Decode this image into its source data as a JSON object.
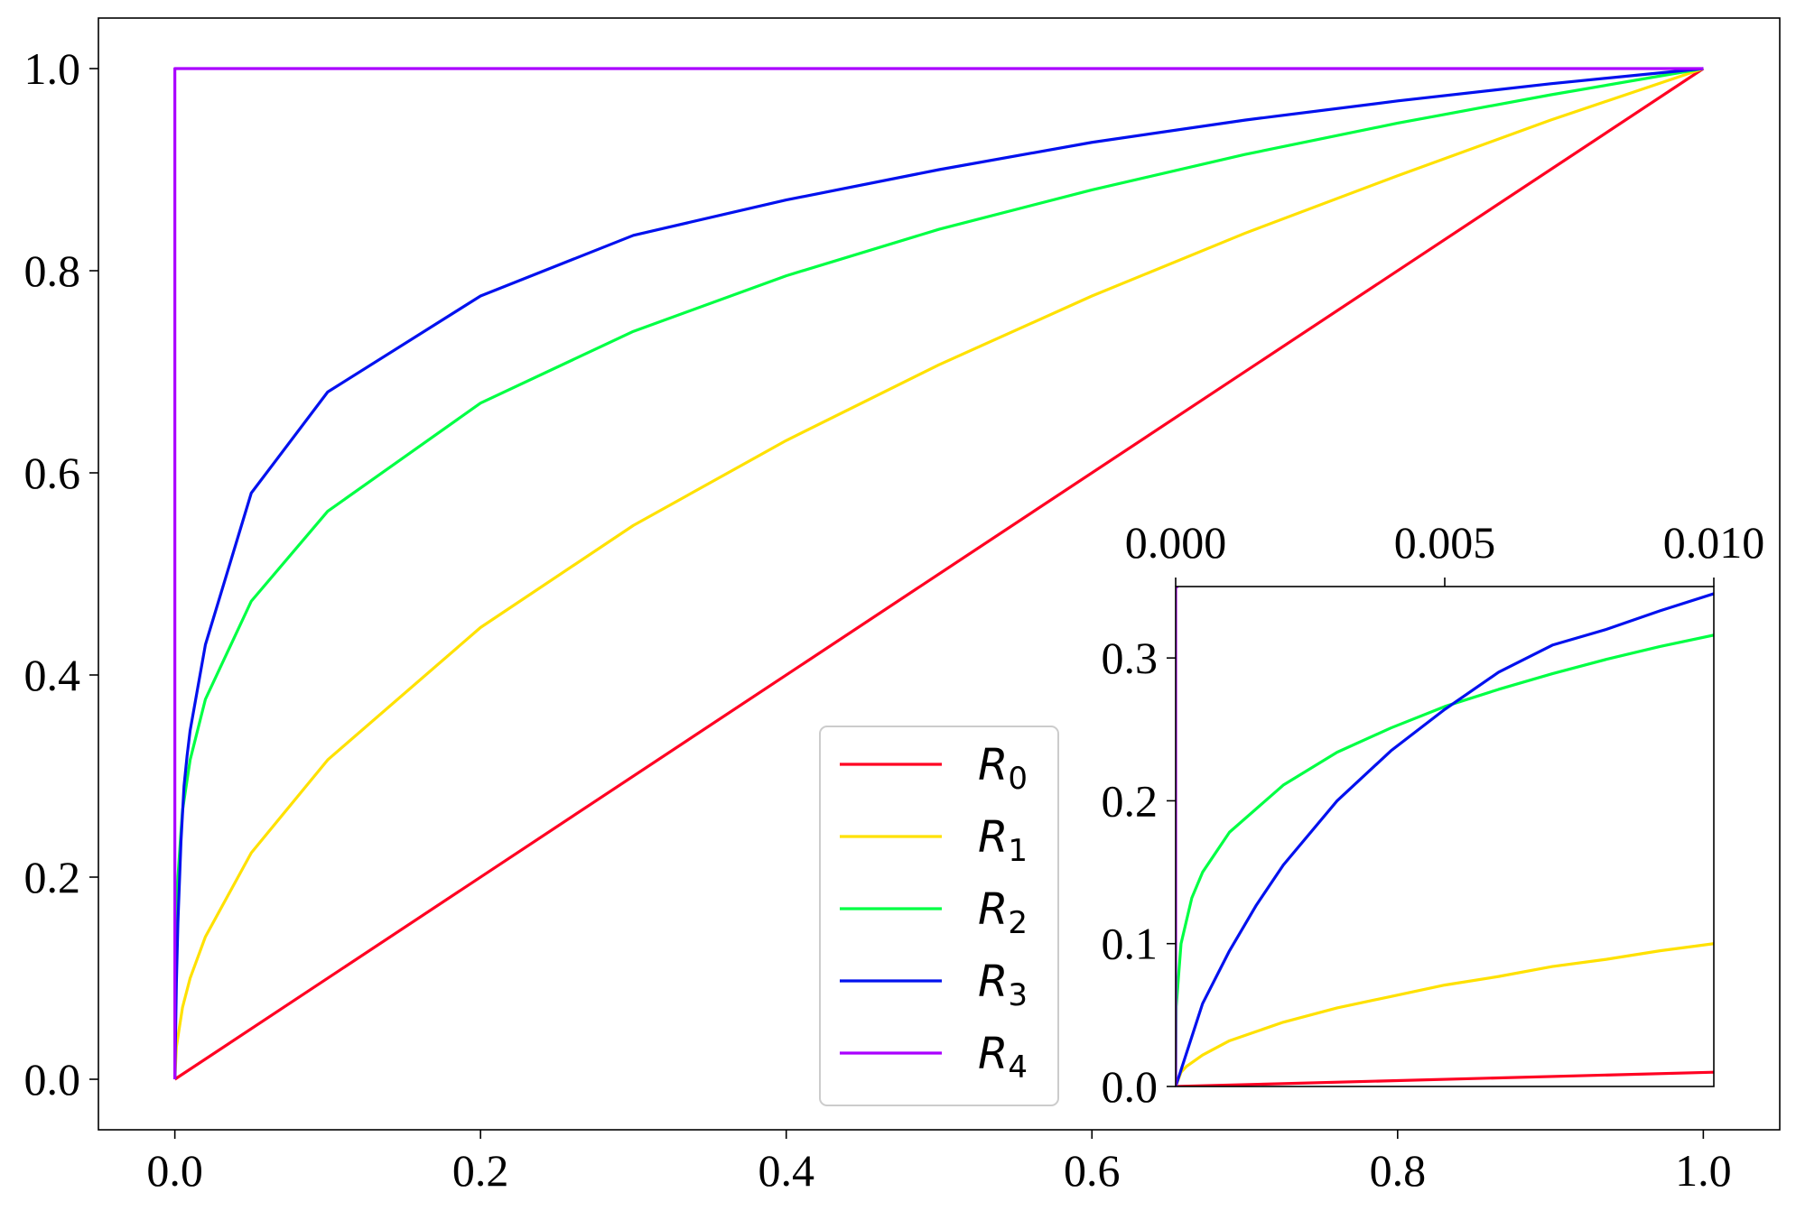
{
  "chart_data": [
    {
      "type": "line",
      "title": "",
      "xlabel": "",
      "ylabel": "",
      "xlim": [
        -0.05,
        1.05
      ],
      "ylim": [
        -0.05,
        1.05
      ],
      "x_ticks": [
        0.0,
        0.2,
        0.4,
        0.6,
        0.8,
        1.0
      ],
      "x_tick_labels": [
        "0.0",
        "0.2",
        "0.4",
        "0.6",
        "0.8",
        "1.0"
      ],
      "y_ticks": [
        0.0,
        0.2,
        0.4,
        0.6,
        0.8,
        1.0
      ],
      "y_tick_labels": [
        "0.0",
        "0.2",
        "0.4",
        "0.6",
        "0.8",
        "1.0"
      ],
      "grid": false,
      "legend_position": "lower-center-right",
      "series": [
        {
          "name": "R",
          "subscript": "0",
          "color": "#ff0022",
          "x": [
            0,
            1
          ],
          "y": [
            0,
            1
          ]
        },
        {
          "name": "R",
          "subscript": "1",
          "color": "#ffe100",
          "x": [
            0,
            0.001,
            0.005,
            0.01,
            0.02,
            0.05,
            0.1,
            0.2,
            0.3,
            0.4,
            0.5,
            0.6,
            0.7,
            0.8,
            0.9,
            1.0
          ],
          "y": [
            0,
            0.032,
            0.071,
            0.1,
            0.141,
            0.224,
            0.316,
            0.447,
            0.548,
            0.632,
            0.707,
            0.775,
            0.837,
            0.894,
            0.949,
            1.0
          ]
        },
        {
          "name": "R",
          "subscript": "2",
          "color": "#00ff44",
          "x": [
            0,
            0.0001,
            0.001,
            0.005,
            0.01,
            0.02,
            0.05,
            0.1,
            0.2,
            0.3,
            0.4,
            0.5,
            0.6,
            0.7,
            0.8,
            0.9,
            1.0
          ],
          "y": [
            0,
            0.1,
            0.178,
            0.266,
            0.316,
            0.376,
            0.473,
            0.562,
            0.669,
            0.74,
            0.795,
            0.841,
            0.88,
            0.915,
            0.946,
            0.974,
            1.0
          ]
        },
        {
          "name": "R",
          "subscript": "3",
          "color": "#0011ee",
          "x": [
            0,
            0.001,
            0.002,
            0.004,
            0.006,
            0.008,
            0.01,
            0.02,
            0.05,
            0.1,
            0.2,
            0.3,
            0.4,
            0.5,
            0.6,
            0.7,
            0.8,
            0.9,
            1.0
          ],
          "y": [
            0,
            0.095,
            0.155,
            0.235,
            0.29,
            0.32,
            0.345,
            0.43,
            0.58,
            0.68,
            0.775,
            0.835,
            0.87,
            0.9,
            0.927,
            0.949,
            0.968,
            0.985,
            1.0
          ]
        },
        {
          "name": "R",
          "subscript": "4",
          "color": "#aa00ff",
          "x": [
            0,
            0,
            1
          ],
          "y": [
            0,
            1,
            1
          ]
        }
      ]
    },
    {
      "type": "line",
      "title": "",
      "xlabel": "",
      "ylabel": "",
      "xlim": [
        0.0,
        0.01
      ],
      "ylim": [
        0.0,
        0.35
      ],
      "x_axis_position": "top",
      "x_ticks": [
        0.0,
        0.005,
        0.01
      ],
      "x_tick_labels": [
        "0.000",
        "0.005",
        "0.010"
      ],
      "y_ticks": [
        0.0,
        0.1,
        0.2,
        0.3
      ],
      "y_tick_labels": [
        "0.0",
        "0.1",
        "0.2",
        "0.3"
      ],
      "grid": false,
      "series": [
        {
          "subscript": "0",
          "color": "#ff0022",
          "x": [
            0,
            0.01
          ],
          "y": [
            0,
            0.01
          ]
        },
        {
          "subscript": "1",
          "color": "#ffe100",
          "x": [
            0,
            0.0001,
            0.0002,
            0.0005,
            0.001,
            0.002,
            0.003,
            0.004,
            0.005,
            0.006,
            0.007,
            0.008,
            0.009,
            0.01
          ],
          "y": [
            0,
            0.01,
            0.014,
            0.022,
            0.032,
            0.045,
            0.055,
            0.063,
            0.071,
            0.077,
            0.084,
            0.089,
            0.095,
            0.1
          ]
        },
        {
          "subscript": "2",
          "color": "#00ff44",
          "x": [
            0,
            1e-05,
            0.0001,
            0.0003,
            0.0005,
            0.001,
            0.002,
            0.003,
            0.004,
            0.005,
            0.006,
            0.007,
            0.008,
            0.009,
            0.01
          ],
          "y": [
            0,
            0.056,
            0.1,
            0.132,
            0.15,
            0.178,
            0.211,
            0.234,
            0.251,
            0.266,
            0.278,
            0.289,
            0.299,
            0.308,
            0.316
          ]
        },
        {
          "subscript": "3",
          "color": "#0011ee",
          "x": [
            0,
            0.0005,
            0.001,
            0.0015,
            0.002,
            0.003,
            0.004,
            0.005,
            0.006,
            0.007,
            0.008,
            0.009,
            0.01
          ],
          "y": [
            0,
            0.058,
            0.095,
            0.127,
            0.155,
            0.2,
            0.235,
            0.264,
            0.29,
            0.309,
            0.32,
            0.333,
            0.345
          ]
        },
        {
          "subscript": "4",
          "color": "#aa00ff",
          "x": [
            0,
            0,
            5e-05
          ],
          "y": [
            0,
            0.35,
            0.35
          ]
        }
      ]
    }
  ]
}
